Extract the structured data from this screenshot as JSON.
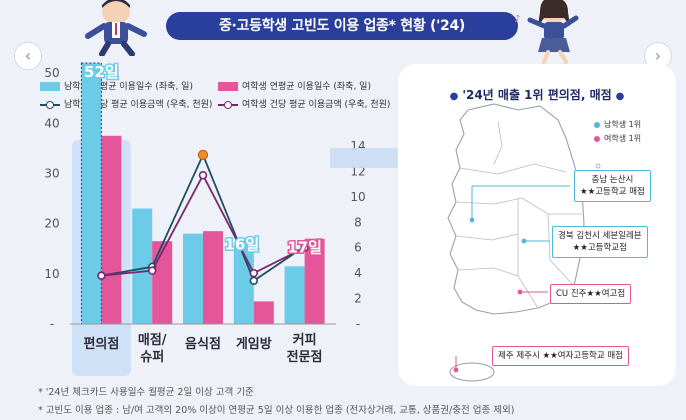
{
  "title": "중·고등학생 고빈도 이용 업종* 현황 ('24)",
  "colors": {
    "boy_bar": "#6ccbe6",
    "girl_bar": "#e4559a",
    "boy_line": "#1e4f60",
    "girl_line": "#7b2670",
    "highlight": "#cfe1f6",
    "accent": "#2a3f9c"
  },
  "chart_data": {
    "type": "bar",
    "categories": [
      "편의점",
      "매점/\n슈퍼",
      "음식점",
      "게임방",
      "커피\n전문점"
    ],
    "series": [
      {
        "name": "남학생 연평균 이용일수 (좌축, 일)",
        "kind": "bar",
        "axis": "left",
        "values": [
          52,
          23,
          18,
          16,
          11.5
        ]
      },
      {
        "name": "여학생 연평균 이용일수 (좌축, 일)",
        "kind": "bar",
        "axis": "left",
        "values": [
          37.5,
          16.5,
          18.5,
          4.5,
          17
        ]
      },
      {
        "name": "남학생 건당 평균 이용금액 (우축, 천원)",
        "kind": "line",
        "axis": "right",
        "values": [
          3.8,
          4.5,
          13.3,
          3.4,
          6.1
        ]
      },
      {
        "name": "여학생 건당 평균 이용금액 (우축, 천원)",
        "kind": "line",
        "axis": "right",
        "values": [
          3.8,
          4.2,
          11.7,
          4.0,
          6.0
        ]
      }
    ],
    "y_left": {
      "range": [
        0,
        55
      ],
      "ticks": [
        "-",
        "10",
        "20",
        "30",
        "40",
        "50"
      ],
      "tick_values": [
        0,
        10,
        20,
        30,
        40,
        50
      ]
    },
    "y_right": {
      "range": [
        0,
        14
      ],
      "ticks": [
        "-",
        "2",
        "4",
        "6",
        "8",
        "10",
        "12",
        "14"
      ],
      "tick_values": [
        0,
        2,
        4,
        6,
        8,
        10,
        12,
        14
      ]
    },
    "data_labels": [
      "52일",
      "16일",
      "17일"
    ],
    "highlight_category": "편의점",
    "grid": false
  },
  "footnotes": [
    "* '24년 체크카드 사용일수 월평균 2일 이상 고객 기준",
    "* 고빈도 이용 업종 : 남/여 고객의 20% 이상이 연평균 5일 이상 이용한 업종 (전자상거래, 교통, 상품권/충전 업종 제외)"
  ],
  "map": {
    "title": "'24년 매출 1위 편의점, 매점",
    "legend": [
      {
        "label": "남학생 1위",
        "color": "#4cbad8"
      },
      {
        "label": "여학생 1위",
        "color": "#e4559a"
      }
    ],
    "callouts": [
      {
        "line1": "충남 논산시",
        "line2": "★★고등학교 매점",
        "gender": "boy"
      },
      {
        "line1": "경북 김천시 세븐일레븐",
        "line2": "★★고등학교점",
        "gender": "boy"
      },
      {
        "line1": "CU 진주★★여고점",
        "line2": "",
        "gender": "girl"
      },
      {
        "line1": "제주 제주시 ★★여자고등학교 매점",
        "line2": "",
        "gender": "girl"
      }
    ]
  }
}
